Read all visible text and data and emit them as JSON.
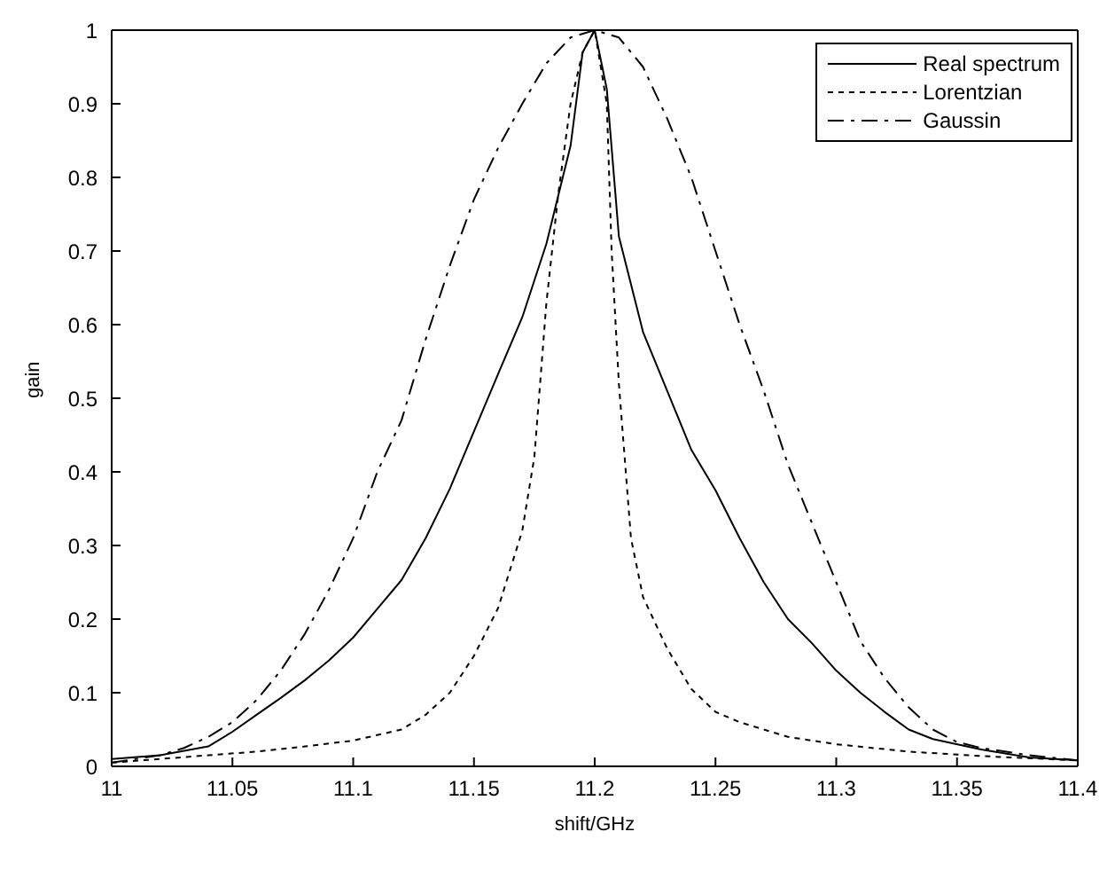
{
  "chart_data": {
    "type": "line",
    "xlabel": "shift/GHz",
    "ylabel": "gain",
    "xlim": [
      11,
      11.4
    ],
    "ylim": [
      0,
      1
    ],
    "xticks": [
      11,
      11.05,
      11.1,
      11.15,
      11.2,
      11.25,
      11.3,
      11.35,
      11.4
    ],
    "yticks": [
      0,
      0.1,
      0.2,
      0.3,
      0.4,
      0.5,
      0.6,
      0.7,
      0.8,
      0.9,
      1
    ],
    "grid": false,
    "legend": "top right",
    "marker": "none",
    "series": [
      {
        "name": "Real spectrum",
        "color": "#000000",
        "line_style": "solid",
        "x": [
          11,
          11.02,
          11.04,
          11.05,
          11.06,
          11.07,
          11.08,
          11.09,
          11.1,
          11.11,
          11.12,
          11.13,
          11.14,
          11.15,
          11.16,
          11.17,
          11.18,
          11.19,
          11.195,
          11.2,
          11.205,
          11.21,
          11.22,
          11.23,
          11.24,
          11.25,
          11.26,
          11.27,
          11.28,
          11.29,
          11.3,
          11.31,
          11.32,
          11.33,
          11.34,
          11.36,
          11.38,
          11.4
        ],
        "values": [
          0.01,
          0.015,
          0.027,
          0.047,
          0.07,
          0.093,
          0.117,
          0.144,
          0.175,
          0.214,
          0.253,
          0.31,
          0.377,
          0.455,
          0.533,
          0.61,
          0.71,
          0.843,
          0.97,
          1,
          0.92,
          0.72,
          0.59,
          0.51,
          0.43,
          0.375,
          0.31,
          0.25,
          0.2,
          0.167,
          0.13,
          0.1,
          0.074,
          0.05,
          0.037,
          0.023,
          0.012,
          0.008
        ]
      },
      {
        "name": "Lorentzian",
        "color": "#000000",
        "line_style": "dotted",
        "x": [
          11,
          11.02,
          11.04,
          11.06,
          11.08,
          11.1,
          11.12,
          11.13,
          11.14,
          11.15,
          11.16,
          11.17,
          11.175,
          11.18,
          11.185,
          11.19,
          11.195,
          11.2,
          11.205,
          11.207,
          11.21,
          11.215,
          11.22,
          11.23,
          11.24,
          11.25,
          11.26,
          11.28,
          11.3,
          11.33,
          11.36,
          11.4
        ],
        "values": [
          0.005,
          0.01,
          0.015,
          0.02,
          0.027,
          0.035,
          0.05,
          0.07,
          0.1,
          0.15,
          0.215,
          0.32,
          0.42,
          0.63,
          0.78,
          0.9,
          0.97,
          1,
          0.9,
          0.7,
          0.52,
          0.31,
          0.23,
          0.16,
          0.105,
          0.074,
          0.06,
          0.04,
          0.03,
          0.02,
          0.014,
          0.008
        ]
      },
      {
        "name": "Gaussin",
        "color": "#000000",
        "line_style": "dashed",
        "x": [
          11,
          11.02,
          11.03,
          11.04,
          11.05,
          11.06,
          11.07,
          11.08,
          11.09,
          11.1,
          11.11,
          11.12,
          11.13,
          11.14,
          11.15,
          11.16,
          11.17,
          11.18,
          11.19,
          11.2,
          11.21,
          11.22,
          11.23,
          11.24,
          11.25,
          11.26,
          11.27,
          11.28,
          11.29,
          11.3,
          11.31,
          11.32,
          11.33,
          11.34,
          11.35,
          11.36,
          11.38,
          11.4
        ],
        "values": [
          0.005,
          0.015,
          0.025,
          0.04,
          0.06,
          0.09,
          0.13,
          0.18,
          0.24,
          0.31,
          0.4,
          0.47,
          0.58,
          0.68,
          0.77,
          0.84,
          0.9,
          0.955,
          0.99,
          1,
          0.99,
          0.95,
          0.88,
          0.8,
          0.7,
          0.6,
          0.51,
          0.41,
          0.33,
          0.25,
          0.17,
          0.12,
          0.08,
          0.05,
          0.033,
          0.025,
          0.015,
          0.008
        ]
      }
    ]
  }
}
